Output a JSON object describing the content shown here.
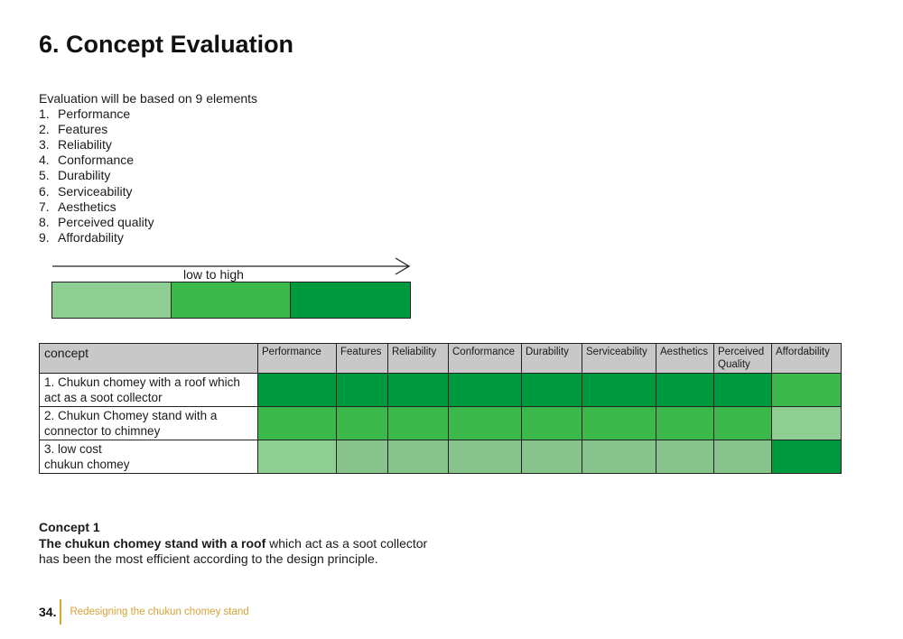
{
  "title": "6. Concept Evaluation",
  "intro": "Evaluation will be based on 9 elements",
  "elements": [
    {
      "num": "1.",
      "label": "Performance"
    },
    {
      "num": "2.",
      "label": "Features"
    },
    {
      "num": "3.",
      "label": "Reliability"
    },
    {
      "num": "4.",
      "label": "Conformance"
    },
    {
      "num": "5.",
      "label": "Durability"
    },
    {
      "num": "6.",
      "label": "Serviceability"
    },
    {
      "num": "7.",
      "label": "Aesthetics"
    },
    {
      "num": "8.",
      "label": "Perceived quality"
    },
    {
      "num": "9.",
      "label": "Affordability"
    }
  ],
  "scale": {
    "label": "low to high",
    "colors": [
      "#8fce92",
      "#3bb84a",
      "#009a3e"
    ]
  },
  "table": {
    "concept_header": "concept",
    "headers": [
      "Performance",
      "Features",
      "Reliability",
      "Conformance",
      "Durability",
      "Serviceability",
      "Aesthetics",
      "Perceived Quality",
      "Affordability"
    ],
    "rows": [
      {
        "name": "1. Chukun chomey with a roof which act as a soot collector",
        "colors": [
          "#009a3e",
          "#009a3e",
          "#009a3e",
          "#009a3e",
          "#009a3e",
          "#009a3e",
          "#009a3e",
          "#009a3e",
          "#3bb84a"
        ]
      },
      {
        "name": "2. Chukun Chomey stand with a connector to chimney",
        "colors": [
          "#3bb84a",
          "#3bb84a",
          "#3bb84a",
          "#3bb84a",
          "#3bb84a",
          "#3bb84a",
          "#3bb84a",
          "#3bb84a",
          "#8fce92"
        ]
      },
      {
        "name": "3. low cost\nchukun chomey",
        "colors": [
          "#8fce92",
          "#86c48b",
          "#86c48b",
          "#86c48b",
          "#86c48b",
          "#86c48b",
          "#86c48b",
          "#86c48b",
          "#009a3e"
        ]
      }
    ]
  },
  "conclusion": {
    "heading": "Concept 1",
    "bold": "The chukun chomey stand with a roof",
    "rest1": " which act as a soot collector",
    "rest2": "has been the most efficient according to the design principle."
  },
  "footer": {
    "page_num": "34.",
    "subtitle": "Redesigning the chukun chomey stand"
  }
}
